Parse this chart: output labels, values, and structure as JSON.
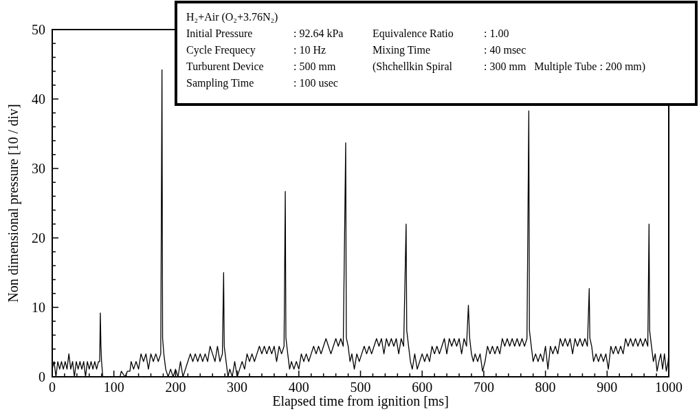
{
  "chart_data": {
    "type": "line",
    "xlabel": "Elapsed time from ignition [ms]",
    "ylabel": "Non dimensional pressure [10 / div]",
    "xlim": [
      0,
      1000
    ],
    "ylim": [
      0,
      50
    ],
    "xticks": [
      0,
      {
        "value": 20,
        "label": null
      },
      {
        "value": 40,
        "label": null
      },
      {
        "value": 60,
        "label": null
      },
      {
        "value": 80,
        "label": null
      },
      100,
      {
        "value": 120,
        "label": null
      },
      {
        "value": 140,
        "label": null
      },
      {
        "value": 160,
        "label": null
      },
      {
        "value": 180,
        "label": null
      },
      200,
      {
        "value": 220,
        "label": null
      },
      {
        "value": 240,
        "label": null
      },
      {
        "value": 260,
        "label": null
      },
      {
        "value": 280,
        "label": null
      },
      300,
      {
        "value": 320,
        "label": null
      },
      {
        "value": 340,
        "label": null
      },
      {
        "value": 360,
        "label": null
      },
      {
        "value": 380,
        "label": null
      },
      400,
      {
        "value": 420,
        "label": null
      },
      {
        "value": 440,
        "label": null
      },
      {
        "value": 460,
        "label": null
      },
      {
        "value": 480,
        "label": null
      },
      500,
      {
        "value": 520,
        "label": null
      },
      {
        "value": 540,
        "label": null
      },
      {
        "value": 560,
        "label": null
      },
      {
        "value": 580,
        "label": null
      },
      600,
      {
        "value": 620,
        "label": null
      },
      {
        "value": 640,
        "label": null
      },
      {
        "value": 660,
        "label": null
      },
      {
        "value": 680,
        "label": null
      },
      700,
      {
        "value": 720,
        "label": null
      },
      {
        "value": 740,
        "label": null
      },
      {
        "value": 760,
        "label": null
      },
      {
        "value": 780,
        "label": null
      },
      800,
      {
        "value": 820,
        "label": null
      },
      {
        "value": 840,
        "label": null
      },
      {
        "value": 860,
        "label": null
      },
      {
        "value": 880,
        "label": null
      },
      900,
      {
        "value": 920,
        "label": null
      },
      {
        "value": 940,
        "label": null
      },
      {
        "value": 960,
        "label": null
      },
      {
        "value": 980,
        "label": null
      },
      1000
    ],
    "yticks": [
      0,
      {
        "value": 2,
        "label": null
      },
      {
        "value": 4,
        "label": null
      },
      {
        "value": 6,
        "label": null
      },
      {
        "value": 8,
        "label": null
      },
      10,
      {
        "value": 12,
        "label": null
      },
      {
        "value": 14,
        "label": null
      },
      {
        "value": 16,
        "label": null
      },
      {
        "value": 18,
        "label": null
      },
      20,
      {
        "value": 22,
        "label": null
      },
      {
        "value": 24,
        "label": null
      },
      {
        "value": 26,
        "label": null
      },
      {
        "value": 28,
        "label": null
      },
      30,
      {
        "value": 32,
        "label": null
      },
      {
        "value": 34,
        "label": null
      },
      {
        "value": 36,
        "label": null
      },
      {
        "value": 38,
        "label": null
      },
      40,
      {
        "value": 42,
        "label": null
      },
      {
        "value": 44,
        "label": null
      },
      {
        "value": 46,
        "label": null
      },
      {
        "value": 48,
        "label": null
      },
      50
    ],
    "marker": "none",
    "line_style": "solid",
    "annotations": [
      "H₂+Air (O₂+3.76N₂)",
      "Initial Pressure\t: 92.64 kPa\tEquivalence Ratio\t: 1.00",
      "Cycle Frequecy\t: 10 Hz\tMixing Time\t: 40 msec",
      "Turburent Device\t: 500 mm\t(Shchellkin Spiral\t: 300 mm   Multiple Tube : 200 mm)",
      "Sampling Time\t: 100 usec"
    ],
    "series": [
      {
        "color": "#000000",
        "x": [
          0,
          3,
          6,
          9,
          12,
          15,
          18,
          21,
          24,
          27,
          30,
          33,
          36,
          39,
          42,
          45,
          48,
          51,
          54,
          57,
          60,
          63,
          66,
          69,
          72,
          75,
          77,
          78,
          79,
          80,
          82,
          90,
          100,
          110,
          112,
          118,
          122,
          126,
          128,
          132,
          136,
          140,
          144,
          148,
          152,
          156,
          160,
          164,
          168,
          172,
          176,
          178,
          179,
          181,
          184,
          188,
          192,
          196,
          200,
          204,
          208,
          212,
          216,
          220,
          224,
          228,
          232,
          236,
          240,
          244,
          248,
          252,
          256,
          260,
          264,
          268,
          272,
          276,
          278,
          279,
          282,
          285,
          288,
          292,
          296,
          300,
          304,
          308,
          312,
          316,
          320,
          324,
          328,
          332,
          336,
          340,
          344,
          348,
          352,
          356,
          360,
          364,
          368,
          372,
          376,
          378,
          379,
          382,
          385,
          388,
          392,
          396,
          400,
          404,
          408,
          412,
          416,
          420,
          424,
          428,
          432,
          436,
          440,
          444,
          448,
          452,
          456,
          460,
          464,
          468,
          472,
          476,
          477,
          480,
          483,
          486,
          490,
          494,
          498,
          502,
          506,
          510,
          514,
          518,
          522,
          526,
          530,
          534,
          538,
          542,
          546,
          550,
          554,
          558,
          562,
          566,
          570,
          574,
          575,
          578,
          581,
          584,
          588,
          592,
          596,
          600,
          604,
          608,
          612,
          616,
          620,
          624,
          628,
          632,
          636,
          640,
          644,
          648,
          652,
          656,
          660,
          664,
          668,
          672,
          675,
          677,
          680,
          683,
          686,
          690,
          694,
          698,
          702,
          706,
          710,
          714,
          718,
          722,
          726,
          730,
          734,
          738,
          742,
          746,
          750,
          754,
          758,
          762,
          766,
          770,
          773,
          774,
          777,
          780,
          784,
          788,
          792,
          796,
          800,
          804,
          808,
          812,
          816,
          820,
          824,
          828,
          832,
          836,
          840,
          844,
          848,
          852,
          856,
          860,
          864,
          868,
          871,
          872,
          875,
          878,
          882,
          886,
          890,
          894,
          898,
          902,
          906,
          910,
          914,
          918,
          922,
          926,
          930,
          934,
          938,
          942,
          946,
          950,
          954,
          958,
          962,
          966,
          968,
          969,
          972,
          975,
          978,
          981,
          984,
          987,
          990,
          993,
          996,
          999,
          1000
        ],
        "values": [
          1.1,
          2.2,
          0,
          2.2,
          1.1,
          2.2,
          1.1,
          2.2,
          1.1,
          3.3,
          1.1,
          2.2,
          0,
          2.2,
          1.1,
          2.2,
          1.1,
          2.2,
          0,
          2.2,
          1.1,
          2.2,
          1.1,
          2.2,
          1.1,
          2.2,
          2.2,
          9.2,
          4.4,
          2.2,
          0,
          0,
          0,
          0,
          0.8,
          0,
          0.8,
          0.8,
          2.2,
          1.1,
          2.2,
          1.1,
          3.3,
          2.2,
          3.3,
          1.1,
          3.3,
          2.2,
          3.3,
          2.2,
          3.3,
          44.2,
          5.6,
          3.3,
          1.1,
          0,
          1.1,
          0,
          1.1,
          0,
          2.2,
          0,
          1.1,
          2.2,
          3.3,
          2.2,
          3.3,
          2.2,
          3.3,
          2.2,
          3.3,
          2.2,
          4.4,
          3.3,
          2.2,
          4.4,
          2.2,
          3.3,
          15.0,
          4.4,
          2.2,
          0,
          1.1,
          0,
          2.2,
          0,
          1.1,
          2.2,
          1.1,
          3.3,
          2.2,
          3.3,
          2.2,
          3.3,
          4.4,
          3.3,
          4.4,
          3.3,
          4.4,
          3.3,
          4.4,
          2.2,
          4.4,
          3.3,
          4.4,
          26.7,
          5.6,
          3.3,
          1.1,
          2.2,
          1.1,
          2.2,
          1.1,
          3.3,
          2.2,
          3.3,
          2.2,
          3.3,
          4.4,
          3.3,
          4.4,
          3.3,
          4.4,
          5.5,
          4.4,
          3.3,
          4.4,
          5.5,
          4.4,
          5.5,
          4.4,
          33.7,
          5.6,
          4.4,
          2.2,
          3.3,
          1.1,
          3.3,
          2.2,
          3.3,
          4.4,
          3.3,
          4.4,
          3.3,
          4.4,
          5.5,
          4.4,
          5.5,
          3.3,
          5.5,
          4.4,
          5.5,
          4.4,
          5.5,
          3.3,
          5.5,
          4.4,
          22.0,
          6.7,
          4.4,
          2.2,
          1.1,
          3.3,
          1.1,
          2.2,
          3.3,
          2.2,
          3.3,
          2.2,
          4.4,
          3.3,
          4.4,
          3.3,
          4.4,
          5.5,
          3.3,
          5.5,
          4.4,
          5.5,
          4.4,
          5.5,
          3.3,
          5.5,
          4.4,
          10.3,
          5.6,
          3.3,
          2.2,
          3.3,
          2.2,
          3.3,
          0.8,
          2.2,
          4.4,
          3.3,
          4.4,
          3.3,
          4.4,
          3.3,
          5.5,
          4.4,
          5.5,
          4.4,
          5.5,
          4.4,
          5.5,
          4.4,
          5.5,
          4.4,
          5.5,
          38.3,
          6.7,
          4.4,
          2.2,
          3.3,
          2.2,
          3.3,
          2.2,
          4.4,
          1.1,
          4.4,
          3.3,
          4.4,
          3.3,
          5.5,
          4.4,
          5.5,
          4.4,
          5.5,
          3.3,
          5.5,
          4.4,
          5.5,
          4.4,
          5.5,
          4.4,
          12.7,
          5.6,
          4.4,
          2.2,
          3.3,
          2.2,
          3.3,
          2.2,
          3.3,
          1.1,
          4.4,
          3.3,
          4.4,
          3.3,
          4.4,
          3.3,
          5.5,
          4.4,
          5.5,
          4.4,
          5.5,
          4.4,
          5.5,
          4.4,
          5.5,
          4.4,
          22.0,
          6.7,
          4.4,
          2.2,
          3.3,
          0.8,
          2.2,
          3.3,
          1.1,
          3.3,
          0.8,
          2.2,
          3.3
        ]
      }
    ]
  }
}
